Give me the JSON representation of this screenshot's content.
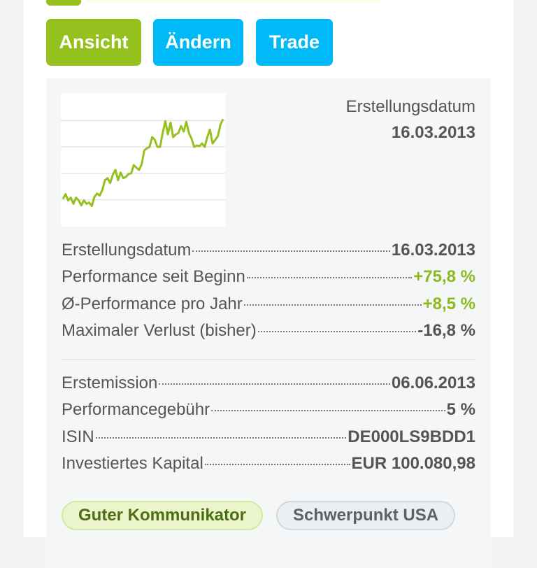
{
  "buttons": {
    "view": "Ansicht",
    "edit": "Ändern",
    "trade": "Trade"
  },
  "colors": {
    "green": "#95c11f",
    "blue": "#00b9f7",
    "positive": "#8cbb1f"
  },
  "header": {
    "label": "Erstellungsdatum",
    "value": "16.03.2013"
  },
  "stats": [
    {
      "label": "Erstellungsdatum",
      "value": "16.03.2013",
      "tone": "neutral"
    },
    {
      "label": "Performance seit Beginn",
      "value": "+75,8 %",
      "tone": "positive"
    },
    {
      "label": "Ø-Performance pro Jahr",
      "value": "+8,5 %",
      "tone": "positive"
    },
    {
      "label": "Maximaler Verlust (bisher)",
      "value": "-16,8 %",
      "tone": "neutral"
    }
  ],
  "details": [
    {
      "label": "Erstemission",
      "value": "06.06.2013"
    },
    {
      "label": "Performancegebühr",
      "value": "5 %"
    },
    {
      "label": "ISIN",
      "value": "DE000LS9BDD1"
    },
    {
      "label": "Investiertes Kapital",
      "value": "EUR 100.080,98"
    }
  ],
  "tags": [
    "Guter Kommunikator",
    "Schwerpunkt USA"
  ],
  "chart_data": {
    "type": "line",
    "line_color": "#95c11f",
    "grid": true,
    "gridlines": [
      98,
      123.5,
      149,
      174.5
    ],
    "ylim": [
      72,
      201
    ],
    "values": [
      98.7,
      103.4,
      97.3,
      100,
      94,
      100,
      97.3,
      92.6,
      97.3,
      94,
      95.3,
      91.9,
      100.7,
      104,
      102,
      107.4,
      116.8,
      118.8,
      114.1,
      122.1,
      126.8,
      116.8,
      124.2,
      118.8,
      120.1,
      122.8,
      123.5,
      131.5,
      128.9,
      126.8,
      132.2,
      145.6,
      147.7,
      149,
      158.4,
      155.7,
      149,
      149,
      162.4,
      173.8,
      161.1,
      172.5,
      158.4,
      161.1,
      162.4,
      169.1,
      163.8,
      173.2,
      162.4,
      157,
      149,
      150.3,
      149.7,
      152.3,
      149,
      158.4,
      165.8,
      152.3,
      155.7,
      159.1,
      170.5,
      175.8
    ]
  }
}
